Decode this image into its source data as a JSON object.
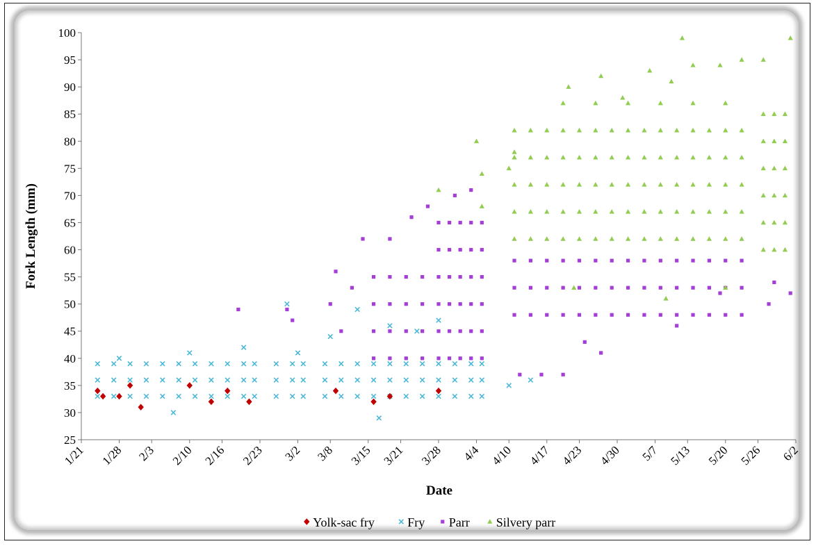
{
  "chart_data": {
    "type": "scatter",
    "x_label": "Date",
    "y_label": "Fork Length (mm)",
    "xlim": [
      "1/21",
      "6/2"
    ],
    "xticks": [
      "1/21",
      "1/28",
      "2/3",
      "2/10",
      "2/16",
      "2/23",
      "3/2",
      "3/8",
      "3/15",
      "3/21",
      "3/28",
      "4/4",
      "4/10",
      "4/17",
      "4/23",
      "4/30",
      "5/7",
      "5/13",
      "5/20",
      "5/26",
      "6/2"
    ],
    "ylim": [
      25,
      100
    ],
    "yticks": [
      25,
      30,
      35,
      40,
      45,
      50,
      55,
      60,
      65,
      70,
      75,
      80,
      85,
      90,
      95,
      100
    ],
    "legend": "bottom",
    "series": [
      {
        "name": "Fry",
        "color": "#4bb8d8",
        "marker": "x",
        "x": [
          "1/24",
          "1/24",
          "1/24",
          "1/27",
          "1/27",
          "1/27",
          "1/30",
          "1/30",
          "1/30",
          "2/2",
          "2/2",
          "2/2",
          "2/5",
          "2/5",
          "2/5",
          "2/8",
          "2/8",
          "2/8",
          "2/11",
          "2/11",
          "2/11",
          "2/14",
          "2/14",
          "2/14",
          "2/17",
          "2/17",
          "2/17",
          "2/20",
          "2/20",
          "2/20",
          "2/22",
          "2/22",
          "2/22",
          "2/26",
          "2/26",
          "2/26",
          "3/1",
          "3/1",
          "3/1",
          "3/3",
          "3/3",
          "3/3",
          "3/7",
          "3/7",
          "3/7",
          "3/10",
          "3/10",
          "3/10",
          "3/13",
          "3/13",
          "3/13",
          "3/16",
          "3/16",
          "3/16",
          "3/19",
          "3/19",
          "3/19",
          "3/22",
          "3/22",
          "3/22",
          "3/25",
          "3/25",
          "3/25",
          "3/28",
          "3/28",
          "3/28",
          "3/31",
          "3/31",
          "3/31",
          "4/3",
          "4/3",
          "4/3",
          "4/5",
          "4/5",
          "4/5",
          "2/7",
          "2/10",
          "2/20",
          "2/28",
          "3/13",
          "3/8",
          "3/17",
          "3/28",
          "4/14",
          "4/10",
          "3/19",
          "1/28",
          "3/2",
          "3/24"
        ],
        "values": [
          33,
          36,
          39,
          33,
          36,
          39,
          33,
          36,
          39,
          33,
          36,
          39,
          33,
          36,
          39,
          33,
          36,
          39,
          33,
          36,
          39,
          33,
          36,
          39,
          33,
          36,
          39,
          33,
          36,
          39,
          33,
          36,
          39,
          33,
          36,
          39,
          33,
          36,
          39,
          33,
          36,
          39,
          33,
          36,
          39,
          33,
          36,
          39,
          33,
          36,
          39,
          33,
          36,
          39,
          33,
          36,
          39,
          33,
          36,
          39,
          33,
          36,
          39,
          33,
          36,
          39,
          33,
          36,
          39,
          33,
          36,
          39,
          33,
          36,
          39,
          30,
          41,
          42,
          50,
          49,
          44,
          29,
          47,
          36,
          35,
          46,
          40,
          41,
          45
        ]
      },
      {
        "name": "Parr",
        "color": "#a53ed6",
        "marker": "square",
        "x": [
          "2/19",
          "2/28",
          "3/1",
          "3/8",
          "3/9",
          "3/10",
          "3/12",
          "3/14",
          "3/19",
          "3/23",
          "3/26",
          "3/31",
          "4/3",
          "4/16",
          "4/20",
          "4/12",
          "4/27",
          "5/11",
          "5/19",
          "5/28",
          "6/1",
          "5/29",
          "4/24",
          "3/16",
          "3/16",
          "3/16",
          "3/16",
          "3/19",
          "3/19",
          "3/19",
          "3/19",
          "3/22",
          "3/22",
          "3/22",
          "3/22",
          "3/25",
          "3/25",
          "3/25",
          "3/25",
          "3/28",
          "3/28",
          "3/28",
          "3/28",
          "3/28",
          "3/28",
          "3/30",
          "3/30",
          "3/30",
          "3/30",
          "3/30",
          "3/30",
          "4/1",
          "4/1",
          "4/1",
          "4/1",
          "4/1",
          "4/1",
          "4/3",
          "4/3",
          "4/3",
          "4/3",
          "4/3",
          "4/3",
          "4/5",
          "4/5",
          "4/5",
          "4/5",
          "4/5",
          "4/5",
          "4/11",
          "4/11",
          "4/11",
          "4/14",
          "4/14",
          "4/14",
          "4/17",
          "4/17",
          "4/17",
          "4/20",
          "4/20",
          "4/20",
          "4/23",
          "4/23",
          "4/23",
          "4/26",
          "4/26",
          "4/26",
          "4/29",
          "4/29",
          "4/29",
          "5/2",
          "5/2",
          "5/2",
          "5/5",
          "5/5",
          "5/5",
          "5/8",
          "5/8",
          "5/8",
          "5/11",
          "5/11",
          "5/11",
          "5/14",
          "5/14",
          "5/14",
          "5/17",
          "5/17",
          "5/17",
          "5/20",
          "5/20",
          "5/20",
          "5/23",
          "5/23",
          "5/23"
        ],
        "values": [
          49,
          49,
          47,
          50,
          56,
          45,
          53,
          62,
          62,
          66,
          68,
          70,
          71,
          37,
          37,
          37,
          41,
          46,
          52,
          50,
          52,
          54,
          43,
          40,
          45,
          50,
          55,
          40,
          45,
          50,
          55,
          40,
          45,
          50,
          55,
          40,
          45,
          50,
          55,
          40,
          45,
          50,
          55,
          60,
          65,
          40,
          45,
          50,
          55,
          60,
          65,
          40,
          45,
          50,
          55,
          60,
          65,
          40,
          45,
          50,
          55,
          60,
          65,
          40,
          45,
          50,
          55,
          60,
          65,
          48,
          53,
          58,
          48,
          53,
          58,
          48,
          53,
          58,
          48,
          53,
          58,
          48,
          53,
          58,
          48,
          53,
          58,
          48,
          53,
          58,
          48,
          53,
          58,
          48,
          53,
          58,
          48,
          53,
          58,
          48,
          53,
          58,
          48,
          53,
          58,
          48,
          53,
          58,
          48,
          53,
          58,
          48,
          53,
          58
        ]
      },
      {
        "name": "Silvery parr",
        "color": "#92cd52",
        "marker": "triangle",
        "x": [
          "3/28",
          "4/4",
          "4/5",
          "4/5",
          "4/10",
          "4/11",
          "5/12",
          "6/1",
          "4/27",
          "5/6",
          "5/10",
          "5/14",
          "5/19",
          "5/23",
          "5/27",
          "4/21",
          "5/1",
          "4/22",
          "5/9",
          "5/20",
          "4/11",
          "4/11",
          "4/11",
          "4/11",
          "4/11",
          "4/14",
          "4/14",
          "4/14",
          "4/14",
          "4/14",
          "4/17",
          "4/17",
          "4/17",
          "4/17",
          "4/17",
          "4/20",
          "4/20",
          "4/20",
          "4/20",
          "4/20",
          "4/23",
          "4/23",
          "4/23",
          "4/23",
          "4/23",
          "4/26",
          "4/26",
          "4/26",
          "4/26",
          "4/26",
          "4/29",
          "4/29",
          "4/29",
          "4/29",
          "4/29",
          "5/2",
          "5/2",
          "5/2",
          "5/2",
          "5/2",
          "5/5",
          "5/5",
          "5/5",
          "5/5",
          "5/5",
          "5/8",
          "5/8",
          "5/8",
          "5/8",
          "5/8",
          "5/11",
          "5/11",
          "5/11",
          "5/11",
          "5/11",
          "5/14",
          "5/14",
          "5/14",
          "5/14",
          "5/14",
          "5/17",
          "5/17",
          "5/17",
          "5/17",
          "5/17",
          "5/20",
          "5/20",
          "5/20",
          "5/20",
          "5/20",
          "5/23",
          "5/23",
          "5/23",
          "5/23",
          "5/23",
          "4/20",
          "4/26",
          "5/2",
          "5/8",
          "5/14",
          "5/20",
          "5/27",
          "5/27",
          "5/27",
          "5/27",
          "5/27",
          "5/27",
          "5/29",
          "5/29",
          "5/29",
          "5/29",
          "5/29",
          "5/29",
          "5/31",
          "5/31",
          "5/31",
          "5/31",
          "5/31",
          "5/31"
        ],
        "values": [
          71,
          80,
          74,
          68,
          75,
          78,
          99,
          99,
          92,
          93,
          91,
          94,
          94,
          95,
          95,
          90,
          88,
          53,
          51,
          53,
          62,
          67,
          72,
          77,
          82,
          62,
          67,
          72,
          77,
          82,
          62,
          67,
          72,
          77,
          82,
          62,
          67,
          72,
          77,
          82,
          62,
          67,
          72,
          77,
          82,
          62,
          67,
          72,
          77,
          82,
          62,
          67,
          72,
          77,
          82,
          62,
          67,
          72,
          77,
          82,
          62,
          67,
          72,
          77,
          82,
          62,
          67,
          72,
          77,
          82,
          62,
          67,
          72,
          77,
          82,
          62,
          67,
          72,
          77,
          82,
          62,
          67,
          72,
          77,
          82,
          62,
          67,
          72,
          77,
          82,
          62,
          67,
          72,
          77,
          82,
          87,
          87,
          87,
          87,
          87,
          87,
          60,
          65,
          70,
          75,
          80,
          85,
          60,
          65,
          70,
          75,
          80,
          85,
          60,
          65,
          70,
          75,
          80,
          85
        ]
      },
      {
        "name": "Yolk-sac fry",
        "color": "#c00000",
        "marker": "diamond",
        "x": [
          "1/24",
          "1/25",
          "1/28",
          "2/1",
          "1/30",
          "2/14",
          "2/21",
          "3/16",
          "3/19",
          "3/28",
          "3/9",
          "2/17",
          "2/10"
        ],
        "values": [
          34,
          33,
          33,
          31,
          35,
          32,
          32,
          32,
          33,
          34,
          34,
          34,
          35
        ]
      }
    ],
    "legend_order": [
      "Yolk-sac fry",
      "Fry",
      "Parr",
      "Silvery parr"
    ]
  }
}
